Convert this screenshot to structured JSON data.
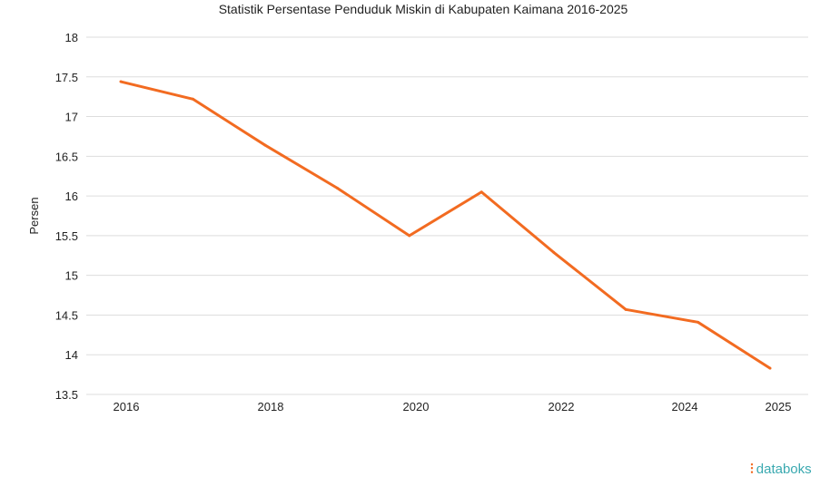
{
  "chart_data": {
    "type": "line",
    "title": "Statistik Persentase Penduduk Miskin di Kabupaten Kaimana 2016-2025",
    "xlabel": "",
    "ylabel": "Persen",
    "x": [
      "2016",
      "2017",
      "2018",
      "2019",
      "2020",
      "2021",
      "2022",
      "2023",
      "2024",
      "2025"
    ],
    "x_tick_labels": [
      "2016",
      "2018",
      "2020",
      "2022",
      "2024",
      "2025"
    ],
    "y_ticks": [
      "13.5",
      "14",
      "14.5",
      "15",
      "15.5",
      "16",
      "16.5",
      "17",
      "17.5",
      "18"
    ],
    "ylim": [
      13.5,
      18
    ],
    "grid": true,
    "series": [
      {
        "name": "Persen",
        "color": "#f26b21",
        "values": [
          17.44,
          17.22,
          16.64,
          16.1,
          15.5,
          16.05,
          15.29,
          14.57,
          14.41,
          13.83
        ]
      }
    ]
  },
  "brand": "databoks",
  "colors": {
    "line": "#f26b21",
    "grid": "#dddddd",
    "brand": "#3aa9b0"
  }
}
